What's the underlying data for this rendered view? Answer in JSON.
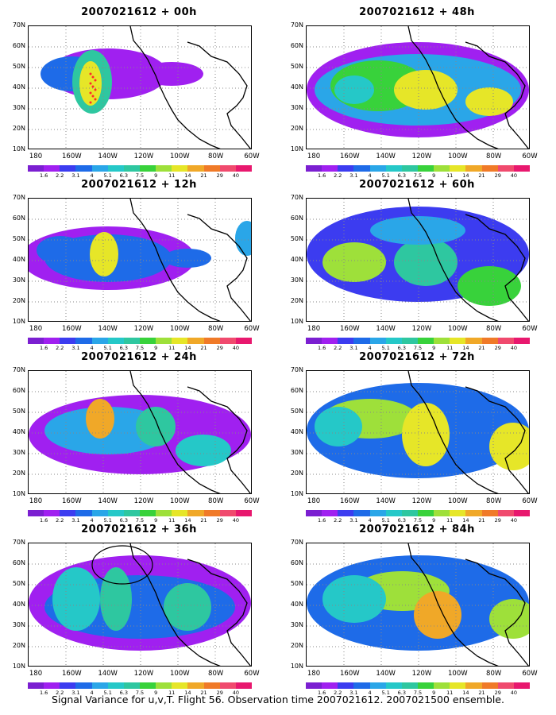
{
  "caption": "Signal Variance for u,v,T. Flight 56. Observation time 2007021612. 2007021500 ensemble.",
  "lat_labels": [
    "70N",
    "60N",
    "50N",
    "40N",
    "30N",
    "20N",
    "10N"
  ],
  "lon_labels": [
    "180",
    "160W",
    "140W",
    "120W",
    "100W",
    "80W",
    "60W"
  ],
  "colorbar": {
    "labels": [
      "1.6",
      "2.2",
      "3.1",
      "4",
      "5.1",
      "6.3",
      "7.5",
      "9",
      "11",
      "14",
      "21",
      "29",
      "40"
    ],
    "colors": [
      "#7b1fd1",
      "#a020f0",
      "#3c3cf0",
      "#1e6be8",
      "#2aa6e8",
      "#25c8c8",
      "#2ec7a0",
      "#38d23b",
      "#9ee03a",
      "#e6e628",
      "#f0a828",
      "#f07a28",
      "#f04a6e",
      "#e8186e"
    ]
  },
  "panels": [
    {
      "title": "2007021612 + 00h"
    },
    {
      "title": "2007021612 + 48h"
    },
    {
      "title": "2007021612 + 12h"
    },
    {
      "title": "2007021612 + 60h"
    },
    {
      "title": "2007021612 + 24h"
    },
    {
      "title": "2007021612 + 72h"
    },
    {
      "title": "2007021612 + 36h"
    },
    {
      "title": "2007021612 + 84h"
    }
  ]
}
